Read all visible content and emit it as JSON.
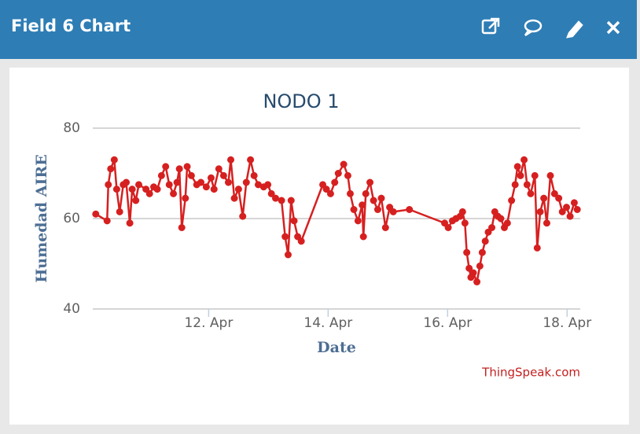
{
  "header": {
    "title": "Field 6 Chart"
  },
  "chart_data": {
    "type": "line",
    "title": "NODO 1",
    "x_label": "Date",
    "y_label": "Humedad AIRE",
    "credits": "ThingSpeak.com",
    "xlim": [
      10.06,
      18.22
    ],
    "ylim": [
      40,
      80
    ],
    "xticks": [
      {
        "value": 12,
        "label": "12. Apr"
      },
      {
        "value": 14,
        "label": "14. Apr"
      },
      {
        "value": 16,
        "label": "16. Apr"
      },
      {
        "value": 18,
        "label": "18. Apr"
      }
    ],
    "yticks": [
      40,
      60,
      80
    ],
    "grid": true,
    "x": [
      10.11,
      10.3,
      10.32,
      10.36,
      10.42,
      10.46,
      10.51,
      10.57,
      10.62,
      10.68,
      10.72,
      10.78,
      10.83,
      10.95,
      11.01,
      11.08,
      11.14,
      11.21,
      11.28,
      11.34,
      11.41,
      11.47,
      11.51,
      11.55,
      11.61,
      11.64,
      11.71,
      11.8,
      11.87,
      11.96,
      12.04,
      12.09,
      12.17,
      12.25,
      12.33,
      12.37,
      12.43,
      12.5,
      12.57,
      12.63,
      12.7,
      12.76,
      12.83,
      12.92,
      12.99,
      13.05,
      13.12,
      13.22,
      13.28,
      13.33,
      13.38,
      13.43,
      13.49,
      13.55,
      13.91,
      13.97,
      14.04,
      14.11,
      14.17,
      14.26,
      14.33,
      14.37,
      14.43,
      14.5,
      14.57,
      14.59,
      14.63,
      14.7,
      14.76,
      14.83,
      14.89,
      14.96,
      15.03,
      15.09,
      15.36,
      15.95,
      16.01,
      16.08,
      16.14,
      16.21,
      16.25,
      16.29,
      16.32,
      16.36,
      16.39,
      16.43,
      16.49,
      16.54,
      16.58,
      16.63,
      16.68,
      16.74,
      16.79,
      16.84,
      16.89,
      16.95,
      17.0,
      17.07,
      17.13,
      17.17,
      17.22,
      17.28,
      17.33,
      17.39,
      17.46,
      17.5,
      17.55,
      17.61,
      17.66,
      17.72,
      17.79,
      17.86,
      17.92,
      17.99,
      18.05,
      18.12,
      18.17
    ],
    "series": [
      {
        "name": "Humedad AIRE",
        "color": "#d62020",
        "values": [
          61,
          59.5,
          67.5,
          71,
          73,
          66.5,
          61.5,
          67.5,
          68,
          59,
          66.5,
          64,
          67.5,
          66.5,
          65.5,
          67,
          66.5,
          69.5,
          71.5,
          67.5,
          65.5,
          68,
          71,
          58,
          64.5,
          71.5,
          69.5,
          67.5,
          68,
          67,
          69,
          66.5,
          71,
          69.5,
          68,
          73,
          64.5,
          66.5,
          60.5,
          68,
          73,
          69.5,
          67.5,
          67,
          67.5,
          65.5,
          64.5,
          64,
          56,
          52,
          64,
          59.5,
          56,
          55,
          67.5,
          66.5,
          65.5,
          68,
          70,
          72,
          69.5,
          65.5,
          62,
          59.5,
          63,
          56,
          65.5,
          68,
          64,
          62,
          64.5,
          58,
          62.5,
          61.5,
          62,
          59,
          58,
          59.5,
          60,
          60.5,
          61.5,
          59,
          52.5,
          49,
          47,
          48,
          46,
          49.5,
          52.5,
          55,
          57,
          58,
          61.5,
          60.5,
          60,
          58,
          59,
          64,
          67.5,
          71.5,
          69.5,
          73,
          67.5,
          65.5,
          69.5,
          53.5,
          61.5,
          64.5,
          59,
          69.5,
          65.5,
          64.5,
          61.5,
          62.5,
          60.5,
          63.5,
          62
        ]
      }
    ]
  }
}
